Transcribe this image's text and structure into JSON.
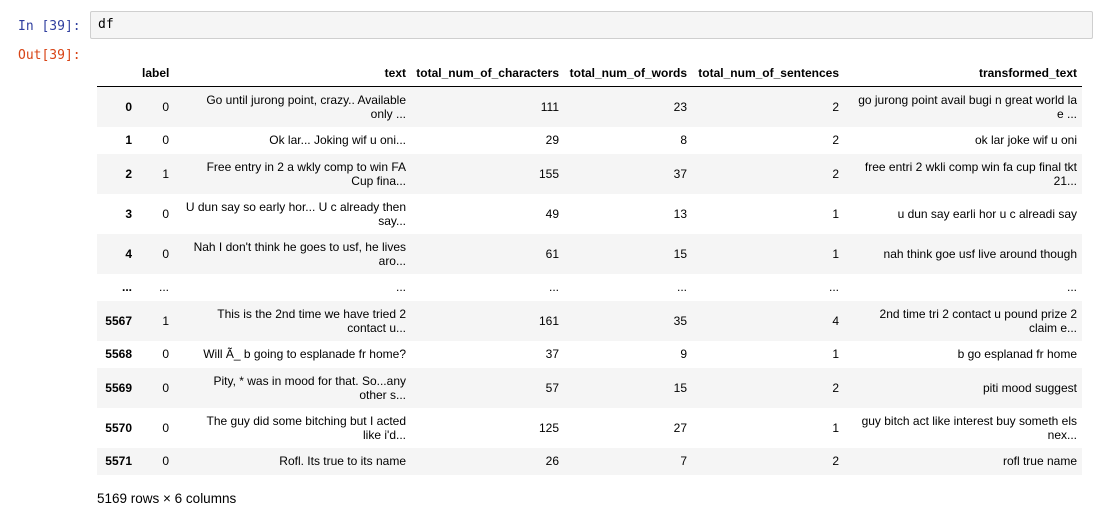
{
  "input_cell": {
    "prompt": "In [39]:",
    "code": "df"
  },
  "output_cell": {
    "prompt": "Out[39]:"
  },
  "table": {
    "columns": [
      "",
      "label",
      "text",
      "total_num_of_characters",
      "total_num_of_words",
      "total_num_of_sentences",
      "transformed_text"
    ],
    "rows": [
      {
        "index": "0",
        "label": "0",
        "text_1": "Go until jurong point, crazy.. Available",
        "text_2": "only ...",
        "chars": "111",
        "words": "23",
        "sentences": "2",
        "transformed_1": "go jurong point avail bugi n great world la",
        "transformed_2": "e ..."
      },
      {
        "index": "1",
        "label": "0",
        "text_1": "Ok lar... Joking wif u oni...",
        "text_2": "",
        "chars": "29",
        "words": "8",
        "sentences": "2",
        "transformed_1": "ok lar joke wif u oni",
        "transformed_2": ""
      },
      {
        "index": "2",
        "label": "1",
        "text_1": "Free entry in 2 a wkly comp to win FA",
        "text_2": "Cup fina...",
        "chars": "155",
        "words": "37",
        "sentences": "2",
        "transformed_1": "free entri 2 wkli comp win fa cup final tkt",
        "transformed_2": "21..."
      },
      {
        "index": "3",
        "label": "0",
        "text_1": "U dun say so early hor... U c already then",
        "text_2": "say...",
        "chars": "49",
        "words": "13",
        "sentences": "1",
        "transformed_1": "u dun say earli hor u c alreadi say",
        "transformed_2": ""
      },
      {
        "index": "4",
        "label": "0",
        "text_1": "Nah I don't think he goes to usf, he lives",
        "text_2": "aro...",
        "chars": "61",
        "words": "15",
        "sentences": "1",
        "transformed_1": "nah think goe usf live around though",
        "transformed_2": ""
      },
      {
        "index": "...",
        "label": "...",
        "text_1": "...",
        "text_2": "",
        "chars": "...",
        "words": "...",
        "sentences": "...",
        "transformed_1": "...",
        "transformed_2": ""
      },
      {
        "index": "5567",
        "label": "1",
        "text_1": "This is the 2nd time we have tried 2",
        "text_2": "contact u...",
        "chars": "161",
        "words": "35",
        "sentences": "4",
        "transformed_1": "2nd time tri 2 contact u pound prize 2",
        "transformed_2": "claim e..."
      },
      {
        "index": "5568",
        "label": "0",
        "text_1": "Will Ã_ b going to esplanade fr home?",
        "text_2": "",
        "chars": "37",
        "words": "9",
        "sentences": "1",
        "transformed_1": "b go esplanad fr home",
        "transformed_2": ""
      },
      {
        "index": "5569",
        "label": "0",
        "text_1": "Pity, * was in mood for that. So...any",
        "text_2": "other s...",
        "chars": "57",
        "words": "15",
        "sentences": "2",
        "transformed_1": "piti mood suggest",
        "transformed_2": ""
      },
      {
        "index": "5570",
        "label": "0",
        "text_1": "The guy did some bitching but I acted",
        "text_2": "like i'd...",
        "chars": "125",
        "words": "27",
        "sentences": "1",
        "transformed_1": "guy bitch act like interest buy someth els",
        "transformed_2": "nex..."
      },
      {
        "index": "5571",
        "label": "0",
        "text_1": "Rofl. Its true to its name",
        "text_2": "",
        "chars": "26",
        "words": "7",
        "sentences": "2",
        "transformed_1": "rofl true name",
        "transformed_2": ""
      }
    ]
  },
  "summary": "5169 rows × 6 columns"
}
